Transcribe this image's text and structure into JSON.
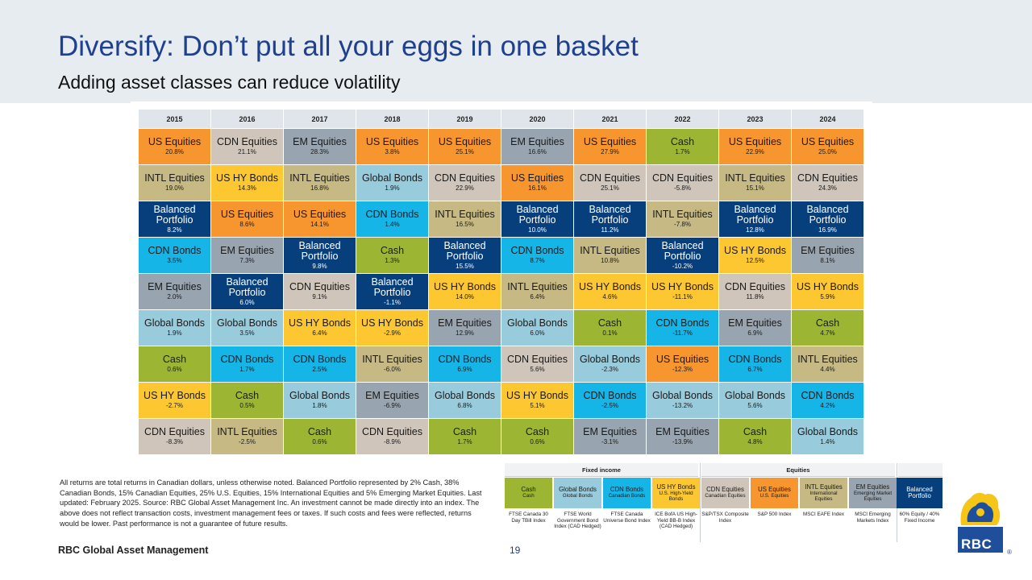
{
  "slide": {
    "title": "Diversify: Don’t put all your eggs in one basket",
    "subtitle": "Adding asset classes can reduce volatility",
    "footnote": "All returns are total returns in Canadian dollars, unless otherwise noted. Balanced Portfolio represented by 2% Cash, 38% Canadian Bonds, 15% Canadian Equities, 25% U.S. Equities, 15% International Equities and 5% Emerging Market Equities. Last updated: February 2025. Source: RBC Global Asset Management Inc. An investment cannot be made directly into an index. The above does not reflect transaction costs, investment management fees or taxes. If such costs and fees were reflected, returns would be lower. Past performance is not a guarantee of future results.",
    "brand": "RBC Global Asset Management",
    "page_number": "19",
    "logo_text": "RBC",
    "logo_mark": "®"
  },
  "colors": {
    "US Equities": "#f7962f",
    "CDN Equities": "#cfc5bb",
    "EM Equities": "#98a4af",
    "INTL Equities": "#c6b983",
    "US HY Bonds": "#fdc732",
    "Global Bonds": "#98ccdc",
    "CDN Bonds": "#16b5e8",
    "Cash": "#9cb633",
    "Balanced Portfolio": "#063f7b"
  },
  "chart_data": {
    "type": "table",
    "years": [
      "2015",
      "2016",
      "2017",
      "2018",
      "2019",
      "2020",
      "2021",
      "2022",
      "2023",
      "2024"
    ],
    "columns": [
      [
        [
          "US Equities",
          "20.8%"
        ],
        [
          "INTL Equities",
          "19.0%"
        ],
        [
          "Balanced Portfolio",
          "8.2%"
        ],
        [
          "CDN Bonds",
          "3.5%"
        ],
        [
          "EM Equities",
          "2.0%"
        ],
        [
          "Global Bonds",
          "1.9%"
        ],
        [
          "Cash",
          "0.6%"
        ],
        [
          "US HY Bonds",
          "-2.7%"
        ],
        [
          "CDN Equities",
          "-8.3%"
        ]
      ],
      [
        [
          "CDN Equities",
          "21.1%"
        ],
        [
          "US HY Bonds",
          "14.3%"
        ],
        [
          "US Equities",
          "8.6%"
        ],
        [
          "EM Equities",
          "7.3%"
        ],
        [
          "Balanced Portfolio",
          "6.0%"
        ],
        [
          "Global Bonds",
          "3.5%"
        ],
        [
          "CDN Bonds",
          "1.7%"
        ],
        [
          "Cash",
          "0.5%"
        ],
        [
          "INTL Equities",
          "-2.5%"
        ]
      ],
      [
        [
          "EM Equities",
          "28.3%"
        ],
        [
          "INTL Equities",
          "16.8%"
        ],
        [
          "US Equities",
          "14.1%"
        ],
        [
          "Balanced Portfolio",
          "9.8%"
        ],
        [
          "CDN Equities",
          "9.1%"
        ],
        [
          "US HY Bonds",
          "6.4%"
        ],
        [
          "CDN Bonds",
          "2.5%"
        ],
        [
          "Global Bonds",
          "1.8%"
        ],
        [
          "Cash",
          "0.6%"
        ]
      ],
      [
        [
          "US Equities",
          "3.8%"
        ],
        [
          "Global Bonds",
          "1.9%"
        ],
        [
          "CDN Bonds",
          "1.4%"
        ],
        [
          "Cash",
          "1.3%"
        ],
        [
          "Balanced Portfolio",
          "-1.1%"
        ],
        [
          "US HY Bonds",
          "-2.9%"
        ],
        [
          "INTL Equities",
          "-6.0%"
        ],
        [
          "EM Equities",
          "-6.9%"
        ],
        [
          "CDN Equities",
          "-8.9%"
        ]
      ],
      [
        [
          "US Equities",
          "25.1%"
        ],
        [
          "CDN Equities",
          "22.9%"
        ],
        [
          "INTL Equities",
          "16.5%"
        ],
        [
          "Balanced Portfolio",
          "15.5%"
        ],
        [
          "US HY Bonds",
          "14.0%"
        ],
        [
          "EM Equities",
          "12.9%"
        ],
        [
          "CDN Bonds",
          "6.9%"
        ],
        [
          "Global Bonds",
          "6.8%"
        ],
        [
          "Cash",
          "1.7%"
        ]
      ],
      [
        [
          "EM Equities",
          "16.6%"
        ],
        [
          "US Equities",
          "16.1%"
        ],
        [
          "Balanced Portfolio",
          "10.0%"
        ],
        [
          "CDN Bonds",
          "8.7%"
        ],
        [
          "INTL Equities",
          "6.4%"
        ],
        [
          "Global Bonds",
          "6.0%"
        ],
        [
          "CDN Equities",
          "5.6%"
        ],
        [
          "US HY Bonds",
          "5.1%"
        ],
        [
          "Cash",
          "0.6%"
        ]
      ],
      [
        [
          "US Equities",
          "27.9%"
        ],
        [
          "CDN Equities",
          "25.1%"
        ],
        [
          "Balanced Portfolio",
          "11.2%"
        ],
        [
          "INTL Equities",
          "10.8%"
        ],
        [
          "US HY Bonds",
          "4.6%"
        ],
        [
          "Cash",
          "0.1%"
        ],
        [
          "Global Bonds",
          "-2.3%"
        ],
        [
          "CDN Bonds",
          "-2.5%"
        ],
        [
          "EM Equities",
          "-3.1%"
        ]
      ],
      [
        [
          "Cash",
          "1.7%"
        ],
        [
          "CDN Equities",
          "-5.8%"
        ],
        [
          "INTL Equities",
          "-7.8%"
        ],
        [
          "Balanced Portfolio",
          "-10.2%"
        ],
        [
          "US HY Bonds",
          "-11.1%"
        ],
        [
          "CDN Bonds",
          "-11.7%"
        ],
        [
          "US Equities",
          "-12.3%"
        ],
        [
          "Global Bonds",
          "-13.2%"
        ],
        [
          "EM Equities",
          "-13.9%"
        ]
      ],
      [
        [
          "US Equities",
          "22.9%"
        ],
        [
          "INTL Equities",
          "15.1%"
        ],
        [
          "Balanced Portfolio",
          "12.8%"
        ],
        [
          "US HY Bonds",
          "12.5%"
        ],
        [
          "CDN Equities",
          "11.8%"
        ],
        [
          "EM Equities",
          "6.9%"
        ],
        [
          "CDN Bonds",
          "6.7%"
        ],
        [
          "Global Bonds",
          "5.6%"
        ],
        [
          "Cash",
          "4.8%"
        ]
      ],
      [
        [
          "US Equities",
          "25.0%"
        ],
        [
          "CDN Equities",
          "24.3%"
        ],
        [
          "Balanced Portfolio",
          "16.9%"
        ],
        [
          "EM Equities",
          "8.1%"
        ],
        [
          "US HY Bonds",
          "5.9%"
        ],
        [
          "Cash",
          "4.7%"
        ],
        [
          "INTL Equities",
          "4.4%"
        ],
        [
          "CDN Bonds",
          "4.2%"
        ],
        [
          "Global Bonds",
          "1.4%"
        ]
      ]
    ]
  },
  "legend": {
    "groups": [
      "Fixed income",
      "Equities"
    ],
    "items": [
      {
        "label": "Cash",
        "sub": "Cash",
        "index": "FTSE Canada 30 Day TBill Index",
        "group": "Fixed income"
      },
      {
        "label": "Global Bonds",
        "sub": "Global Bonds",
        "index": "FTSE World Government Bond Index (CAD Hedged)",
        "group": "Fixed income"
      },
      {
        "label": "CDN Bonds",
        "sub": "Canadian Bonds",
        "index": "FTSE Canada Universe Bond Index",
        "group": "Fixed income"
      },
      {
        "label": "US HY Bonds",
        "sub": "U.S. High-Yield Bonds",
        "index": "ICE BofA US High-Yield BB-B Index (CAD Hedged)",
        "group": "Fixed income"
      },
      {
        "label": "CDN Equities",
        "sub": "Canadian Equities",
        "index": "S&P/TSX Composite Index",
        "group": "Equities"
      },
      {
        "label": "US Equities",
        "sub": "U.S. Equities",
        "index": "S&P 500 Index",
        "group": "Equities"
      },
      {
        "label": "INTL Equities",
        "sub": "International Equities",
        "index": "MSCI EAFE Index",
        "group": "Equities"
      },
      {
        "label": "EM Equities",
        "sub": "Emerging Market Equities",
        "index": "MSCI Emerging Markets Index",
        "group": "Equities"
      },
      {
        "label": "Balanced Portfolio",
        "sub": "",
        "index": "60% Equity / 40% Fixed Income",
        "group": ""
      }
    ]
  }
}
